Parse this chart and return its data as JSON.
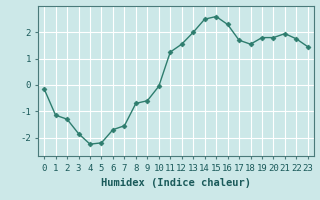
{
  "x": [
    0,
    1,
    2,
    3,
    4,
    5,
    6,
    7,
    8,
    9,
    10,
    11,
    12,
    13,
    14,
    15,
    16,
    17,
    18,
    19,
    20,
    21,
    22,
    23
  ],
  "y": [
    -0.15,
    -1.15,
    -1.3,
    -1.85,
    -2.25,
    -2.2,
    -1.7,
    -1.55,
    -0.7,
    -0.6,
    -0.05,
    1.25,
    1.55,
    2.0,
    2.5,
    2.6,
    2.3,
    1.7,
    1.55,
    1.8,
    1.8,
    1.95,
    1.75,
    1.45
  ],
  "line_color": "#2e7d6e",
  "marker": "D",
  "marker_size": 2.5,
  "bg_color": "#cce8e8",
  "grid_color": "#ffffff",
  "xlabel": "Humidex (Indice chaleur)",
  "ylabel": "",
  "ylim": [
    -2.7,
    3.0
  ],
  "xlim": [
    -0.5,
    23.5
  ],
  "yticks": [
    -2,
    -1,
    0,
    1,
    2
  ],
  "xticks": [
    0,
    1,
    2,
    3,
    4,
    5,
    6,
    7,
    8,
    9,
    10,
    11,
    12,
    13,
    14,
    15,
    16,
    17,
    18,
    19,
    20,
    21,
    22,
    23
  ],
  "xlabel_fontsize": 7.5,
  "tick_fontsize": 6.5,
  "line_width": 1.0,
  "spine_color": "#4a7a7a",
  "tick_color": "#4a7a7a",
  "text_color": "#1a5a5a"
}
